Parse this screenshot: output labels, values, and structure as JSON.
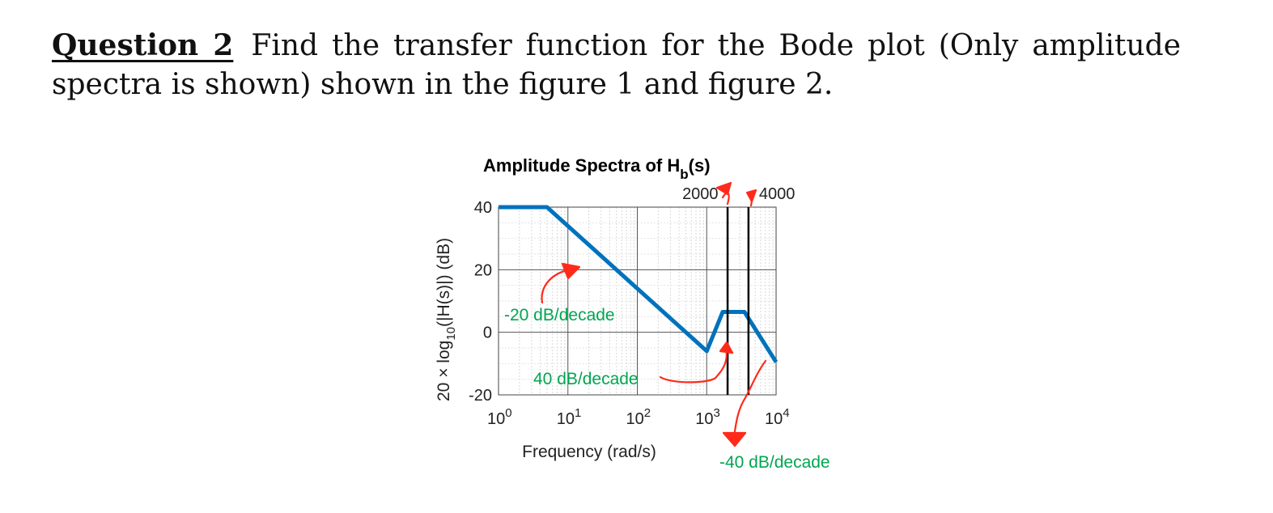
{
  "question": {
    "label": "Question 2",
    "text": "Find the transfer function for the Bode plot (Only amplitude spectra is shown) shown in the figure 1 and figure 2."
  },
  "chart_data": {
    "type": "line",
    "title": "Amplitude Spectra of H",
    "title_subscript": "b",
    "title_suffix": "(s)",
    "xlabel": "Frequency (rad/s)",
    "ylabel_parts": [
      "20 × log",
      "10",
      "(|H(s)|) (dB)"
    ],
    "x_scale": "log",
    "xlim": [
      1,
      10000
    ],
    "ylim": [
      -20,
      40
    ],
    "grid": true,
    "x_ticks": [
      {
        "base": "10",
        "exp": "0"
      },
      {
        "base": "10",
        "exp": "1"
      },
      {
        "base": "10",
        "exp": "2"
      },
      {
        "base": "10",
        "exp": "3"
      },
      {
        "base": "10",
        "exp": "4"
      }
    ],
    "y_ticks": [
      "40",
      "20",
      "0",
      "-20"
    ],
    "series": [
      {
        "color": "#0072BD",
        "x": [
          1,
          5,
          1000,
          1700,
          3500,
          10000
        ],
        "y": [
          40,
          40,
          -6,
          6.5,
          6.5,
          -9.5
        ]
      }
    ],
    "markers": [
      {
        "x": 2000,
        "label": "2000"
      },
      {
        "x": 4000,
        "label": "4000"
      }
    ],
    "annotations": [
      {
        "text": "-20 dB/decade",
        "color": "#00A651"
      },
      {
        "text": "40 dB/decade",
        "color": "#00A651"
      },
      {
        "text": "-40 dB/decade",
        "color": "#00A651"
      }
    ],
    "annotation_color": "#FF2A1A"
  }
}
